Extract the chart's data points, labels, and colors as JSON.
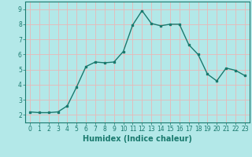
{
  "x": [
    0,
    1,
    2,
    3,
    4,
    5,
    6,
    7,
    8,
    9,
    10,
    11,
    12,
    13,
    14,
    15,
    16,
    17,
    18,
    19,
    20,
    21,
    22,
    23
  ],
  "y": [
    2.2,
    2.15,
    2.15,
    2.2,
    2.6,
    3.85,
    5.2,
    5.5,
    5.45,
    5.5,
    6.2,
    7.95,
    8.9,
    8.05,
    7.9,
    8.0,
    8.0,
    6.65,
    6.0,
    4.7,
    4.25,
    5.1,
    4.95,
    4.6
  ],
  "line_color": "#1a7a6e",
  "marker": "s",
  "marker_size": 2.0,
  "line_width": 1.0,
  "bg_color": "#b3e8e8",
  "grid_color": "#e8b8b8",
  "xlabel": "Humidex (Indice chaleur)",
  "ylim": [
    1.5,
    9.5
  ],
  "xlim": [
    -0.5,
    23.5
  ],
  "yticks": [
    2,
    3,
    4,
    5,
    6,
    7,
    8,
    9
  ],
  "xticks": [
    0,
    1,
    2,
    3,
    4,
    5,
    6,
    7,
    8,
    9,
    10,
    11,
    12,
    13,
    14,
    15,
    16,
    17,
    18,
    19,
    20,
    21,
    22,
    23
  ],
  "tick_label_fontsize": 5.5,
  "xlabel_fontsize": 7.0
}
